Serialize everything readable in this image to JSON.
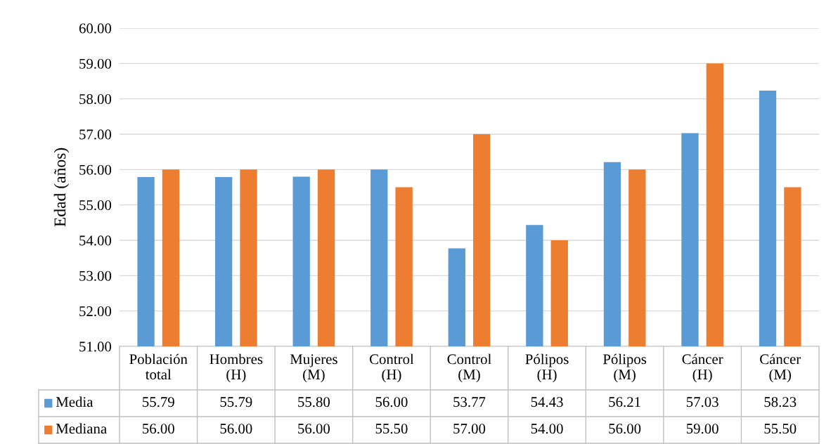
{
  "chart_data": {
    "type": "bar",
    "ylabel": "Edad (años)",
    "categories": [
      "Población total",
      "Hombres (H)",
      "Mujeres (M)",
      "Control (H)",
      "Control (M)",
      "Pólipos (H)",
      "Pólipos (M)",
      "Cáncer (H)",
      "Cáncer (M)"
    ],
    "series": [
      {
        "name": "Media",
        "color": "#5b9bd5",
        "values": [
          55.79,
          55.79,
          55.8,
          56.0,
          53.77,
          54.43,
          56.21,
          57.03,
          58.23
        ],
        "value_labels": [
          "55.79",
          "55.79",
          "55.80",
          "56.00",
          "53.77",
          "54.43",
          "56.21",
          "57.03",
          "58.23"
        ]
      },
      {
        "name": "Mediana",
        "color": "#ed7d31",
        "values": [
          56.0,
          56.0,
          56.0,
          55.5,
          57.0,
          54.0,
          56.0,
          59.0,
          55.5
        ],
        "value_labels": [
          "56.00",
          "56.00",
          "56.00",
          "55.50",
          "57.00",
          "54.00",
          "56.00",
          "59.00",
          "55.50"
        ]
      }
    ],
    "ylim": [
      51,
      60
    ],
    "yticks": [
      {
        "value": 51,
        "label": "51.00"
      },
      {
        "value": 52,
        "label": "52.00"
      },
      {
        "value": 53,
        "label": "53.00"
      },
      {
        "value": 54,
        "label": "54.00"
      },
      {
        "value": 55,
        "label": "55.00"
      },
      {
        "value": 56,
        "label": "56.00"
      },
      {
        "value": 57,
        "label": "57.00"
      },
      {
        "value": 58,
        "label": "58.00"
      },
      {
        "value": 59,
        "label": "59.00"
      },
      {
        "value": 60,
        "label": "60.00"
      }
    ],
    "grid": "y",
    "legend": "bottom"
  }
}
